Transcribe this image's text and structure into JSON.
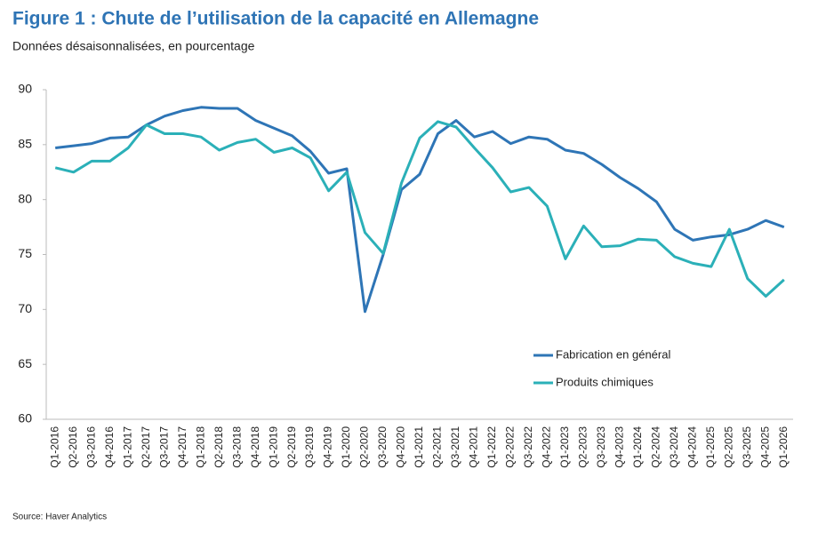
{
  "chart_data": {
    "type": "line",
    "title": "Figure 1 : Chute de l’utilisation de la capacité en Allemagne",
    "subtitle": "Données désaisonnalisées, en pourcentage",
    "source": "Source: Haver Analytics",
    "categories": [
      "Q1-2016",
      "Q2-2016",
      "Q3-2016",
      "Q4-2016",
      "Q1-2017",
      "Q2-2017",
      "Q3-2017",
      "Q4-2017",
      "Q1-2018",
      "Q2-2018",
      "Q3-2018",
      "Q4-2018",
      "Q1-2019",
      "Q2-2019",
      "Q3-2019",
      "Q4-2019",
      "Q1-2020",
      "Q2-2020",
      "Q3-2020",
      "Q4-2020",
      "Q1-2021",
      "Q2-2021",
      "Q3-2021",
      "Q4-2021",
      "Q1-2022",
      "Q2-2022",
      "Q3-2022",
      "Q4-2022",
      "Q1-2023",
      "Q2-2023",
      "Q3-2023",
      "Q4-2023",
      "Q1-2024",
      "Q2-2024",
      "Q3-2024",
      "Q4-2024",
      "Q1-2025",
      "Q2-2025",
      "Q3-2025",
      "Q4-2025",
      "Q1-2026"
    ],
    "series": [
      {
        "name": "Fabrication en général",
        "color": "#2e75b6",
        "values": [
          84.7,
          84.9,
          85.1,
          85.6,
          85.7,
          86.8,
          87.6,
          88.1,
          88.4,
          88.3,
          88.3,
          87.2,
          86.5,
          85.8,
          84.4,
          82.4,
          82.8,
          69.8,
          75.0,
          80.9,
          82.3,
          86.0,
          87.2,
          85.7,
          86.2,
          85.1,
          85.7,
          85.5,
          84.5,
          84.2,
          83.2,
          82.0,
          81.0,
          79.8,
          77.3,
          76.3,
          76.6,
          76.8,
          77.3,
          78.1,
          77.5
        ]
      },
      {
        "name": "Produits chimiques",
        "color": "#2bb0b8",
        "values": [
          82.9,
          82.5,
          83.5,
          83.5,
          84.7,
          86.8,
          86.0,
          86.0,
          85.7,
          84.5,
          85.2,
          85.5,
          84.3,
          84.7,
          83.8,
          80.8,
          82.5,
          77.0,
          75.1,
          81.5,
          85.6,
          87.1,
          86.6,
          84.7,
          82.9,
          80.7,
          81.1,
          79.4,
          74.6,
          77.6,
          75.7,
          75.8,
          76.4,
          76.3,
          74.8,
          74.2,
          73.9,
          77.3,
          72.8,
          71.2,
          72.7
        ]
      }
    ],
    "ylim": [
      60,
      90
    ],
    "yticks": [
      60,
      65,
      70,
      75,
      80,
      85,
      90
    ],
    "grid": false,
    "legend": "center right"
  }
}
